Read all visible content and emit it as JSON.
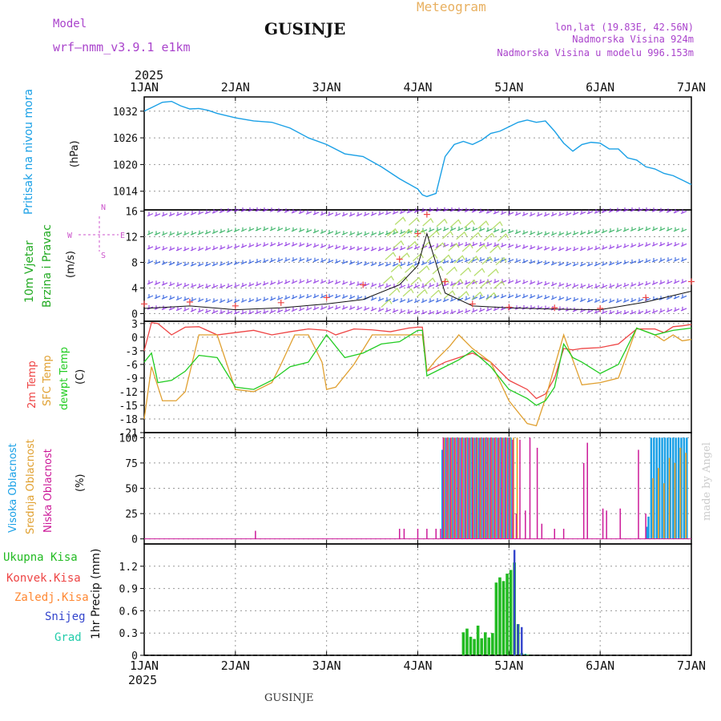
{
  "header": {
    "model_label": "Model",
    "model_name": "wrf—nmm_v3.9.1  e1km",
    "station_title": "GUSINJE",
    "meteogram_label": "Meteogram",
    "lonlat": "lon,lat (19.83E, 42.56N)",
    "elevation": "Nadmorska Visina 924m",
    "model_elevation": "Nadmorska Visina u modelu 996.153m",
    "year_top": "2025",
    "year_bottom": "2025",
    "footer_station": "GUSINJE",
    "watermark": "made by Angel"
  },
  "colors": {
    "pressure": "#1aa0e6",
    "temp2m": "#ee4444",
    "sfc_temp": "#e0a030",
    "dewpt": "#22cc22",
    "high_cloud": "#1aa0e6",
    "mid_cloud": "#e0a030",
    "low_cloud": "#cc1a99",
    "total_precip": "#22bb22",
    "conv_precip": "#ee4444",
    "frz_precip": "#ff8833",
    "snow": "#3344cc",
    "hail": "#22ccaa",
    "wind_label": "#22aa22",
    "wind_glyph": "#cc55cc"
  },
  "chart_data": [
    {
      "type": "line",
      "panel": "pressure",
      "ylabel_lines": [
        "Pritisak na nivou mora",
        "(hPa)"
      ],
      "x_tick_labels": [
        "1JAN",
        "2JAN",
        "3JAN",
        "4JAN",
        "5JAN",
        "6JAN",
        "7JAN"
      ],
      "y_ticks": [
        1014,
        1020,
        1026,
        1032
      ],
      "ylim": [
        1009.8,
        1035.2
      ],
      "xlim": [
        0,
        6
      ],
      "grid": true,
      "series": [
        {
          "x": [
            0,
            0.1,
            0.2,
            0.3,
            0.4,
            0.5,
            0.6,
            0.7,
            0.8,
            0.9,
            1.0,
            1.2,
            1.4,
            1.6,
            1.8,
            2.0,
            2.2,
            2.4,
            2.6,
            2.8,
            3.0,
            3.05,
            3.1,
            3.2,
            3.3,
            3.4,
            3.5,
            3.6,
            3.7,
            3.8,
            3.9,
            4.0,
            4.1,
            4.2,
            4.3,
            4.4,
            4.5,
            4.6,
            4.7,
            4.8,
            4.9,
            5.0,
            5.1,
            5.2,
            5.3,
            5.4,
            5.5,
            5.6,
            5.7,
            5.8,
            5.9,
            6.0
          ],
          "values": [
            1032,
            1033,
            1034,
            1034.2,
            1033.2,
            1032.5,
            1032.6,
            1032.2,
            1031.5,
            1031,
            1030.5,
            1029.8,
            1029.5,
            1028.2,
            1026,
            1024.5,
            1022.4,
            1021.8,
            1019.5,
            1016.8,
            1014.5,
            1013.2,
            1012.8,
            1013.5,
            1021.8,
            1024.5,
            1025.2,
            1024.5,
            1025.5,
            1027,
            1027.5,
            1028.5,
            1029.5,
            1030,
            1029.5,
            1029.8,
            1027.5,
            1024.8,
            1023,
            1024.5,
            1025,
            1024.8,
            1023.5,
            1023.5,
            1021.5,
            1021,
            1019.5,
            1019,
            1018,
            1017.5,
            1016.5,
            1015.5
          ]
        }
      ]
    },
    {
      "type": "scatter",
      "panel": "wind",
      "ylabel_lines": [
        "10m Vjetar",
        "Brzina i Pravac",
        "(m/s)"
      ],
      "direction_legend": [
        "N",
        "S",
        "W",
        "E"
      ],
      "y_ticks": [
        0,
        4,
        8,
        12,
        16
      ],
      "ylim": [
        -1.2,
        16.2
      ],
      "xlim": [
        0,
        6
      ],
      "grid": true,
      "series": [
        {
          "name": "wind speed",
          "x": [
            0,
            0.5,
            1.0,
            1.5,
            2.0,
            2.4,
            2.8,
            3.0,
            3.1,
            3.3,
            3.6,
            4.0,
            4.5,
            5.0,
            5.5,
            6.0
          ],
          "values": [
            0.8,
            1.2,
            0.6,
            0.9,
            1.5,
            2.2,
            4.5,
            7.5,
            12.5,
            3.2,
            1.2,
            0.9,
            0.7,
            0.6,
            1.8,
            3.5
          ]
        },
        {
          "name": "gust",
          "x": [
            0,
            0.5,
            1.0,
            1.5,
            2.0,
            2.4,
            2.8,
            3.0,
            3.1,
            3.3,
            3.6,
            4.0,
            4.5,
            5.0,
            5.5,
            6.0
          ],
          "values": [
            1.5,
            1.8,
            1.2,
            1.7,
            2.5,
            4.5,
            8.5,
            12.5,
            15.5,
            5.0,
            1.5,
            1.0,
            0.9,
            0.8,
            2.5,
            5.0
          ]
        }
      ]
    },
    {
      "type": "line",
      "panel": "temperature",
      "ylabel_lines": [
        "2m Temp",
        "SFC Temp",
        "dewpt Temp",
        "(C)"
      ],
      "y_ticks": [
        3,
        0,
        -3,
        -6,
        -9,
        -12,
        -15,
        -18,
        -21
      ],
      "ylim": [
        -21,
        3.5
      ],
      "xlim": [
        0,
        6
      ],
      "grid": true,
      "series": [
        {
          "name": "2m Temp",
          "x": [
            0,
            0.08,
            0.15,
            0.3,
            0.45,
            0.6,
            0.8,
            1.0,
            1.2,
            1.4,
            1.6,
            1.8,
            2.0,
            2.1,
            2.3,
            2.5,
            2.7,
            2.9,
            3.0,
            3.05,
            3.1,
            3.3,
            3.45,
            3.6,
            3.8,
            4.0,
            4.2,
            4.3,
            4.4,
            4.5,
            4.6,
            4.7,
            4.8,
            5.0,
            5.2,
            5.4,
            5.6,
            5.7,
            5.8,
            5.9,
            6.0
          ],
          "values": [
            -3,
            3.2,
            3.0,
            0.5,
            2.2,
            2.3,
            0.5,
            1.0,
            1.5,
            0.5,
            1.2,
            1.8,
            1.5,
            0.5,
            1.8,
            1.6,
            1.2,
            2.0,
            2.2,
            2.2,
            -7.5,
            -5.5,
            -4.5,
            -3.5,
            -5.5,
            -9.5,
            -11.5,
            -13.5,
            -12.5,
            -9.0,
            -2.5,
            -2.8,
            -2.5,
            -2.3,
            -1.5,
            1.8,
            1.8,
            1.0,
            2.3,
            2.5,
            2.8
          ]
        },
        {
          "name": "SFC Temp",
          "x": [
            0,
            0.08,
            0.2,
            0.35,
            0.45,
            0.6,
            0.8,
            1.0,
            1.2,
            1.4,
            1.5,
            1.65,
            1.8,
            1.95,
            2.0,
            2.1,
            2.3,
            2.5,
            2.7,
            2.85,
            3.0,
            3.05,
            3.1,
            3.2,
            3.35,
            3.45,
            3.6,
            3.8,
            4.0,
            4.2,
            4.3,
            4.4,
            4.5,
            4.6,
            4.8,
            5.0,
            5.2,
            5.4,
            5.6,
            5.7,
            5.8,
            5.9,
            6.0
          ],
          "values": [
            -18,
            -6.5,
            -14.0,
            -14.0,
            -12.0,
            0.5,
            0.5,
            -11.5,
            -12.0,
            -10.0,
            -6.0,
            0.5,
            0.5,
            -5.5,
            -11.5,
            -11.0,
            -6.0,
            0.5,
            0.5,
            0.5,
            0.5,
            0.5,
            -7.5,
            -5.0,
            -2.0,
            0.5,
            -2.5,
            -5.5,
            -14.0,
            -19.0,
            -19.5,
            -13.5,
            -6.5,
            0.5,
            -10.5,
            -10.0,
            -9.0,
            2.0,
            0.5,
            -0.8,
            0.5,
            -0.8,
            -0.5
          ]
        },
        {
          "name": "dewpt Temp",
          "x": [
            0,
            0.08,
            0.15,
            0.3,
            0.45,
            0.6,
            0.8,
            1.0,
            1.2,
            1.4,
            1.6,
            1.8,
            2.0,
            2.2,
            2.4,
            2.6,
            2.8,
            3.0,
            3.05,
            3.1,
            3.3,
            3.45,
            3.6,
            3.8,
            4.0,
            4.2,
            4.3,
            4.4,
            4.5,
            4.6,
            4.7,
            4.8,
            5.0,
            5.2,
            5.4,
            5.6,
            5.8,
            6.0
          ],
          "values": [
            -5.5,
            -3.5,
            -10.0,
            -9.5,
            -7.5,
            -4.0,
            -4.5,
            -11.0,
            -11.5,
            -9.5,
            -6.5,
            -5.5,
            0.5,
            -4.5,
            -3.5,
            -1.5,
            -1.0,
            1.5,
            1.5,
            -8.5,
            -6.5,
            -5.0,
            -3.0,
            -6.5,
            -11.5,
            -13.5,
            -15.0,
            -14.0,
            -11.0,
            -1.5,
            -4.5,
            -5.5,
            -8.0,
            -6.0,
            2.0,
            0.5,
            1.5,
            2.0
          ]
        }
      ]
    },
    {
      "type": "bar",
      "panel": "clouds",
      "ylabel_lines": [
        "Visoka Oblacnost",
        "Srednja Oblacnost",
        "Niska Oblacnost",
        "(%)"
      ],
      "y_ticks": [
        0,
        25,
        50,
        75,
        100
      ],
      "ylim": [
        -5,
        105
      ],
      "xlim": [
        0,
        6
      ],
      "grid": true,
      "series": [
        {
          "name": "Visoka Oblacnost",
          "x": [
            3.27,
            3.3,
            3.34,
            3.38,
            3.42,
            3.46,
            3.5,
            3.54,
            3.58,
            3.62,
            3.66,
            3.7,
            3.74,
            3.78,
            3.82,
            3.86,
            3.9,
            3.94,
            3.98,
            4.02,
            5.51,
            5.53,
            5.56,
            5.59,
            5.62,
            5.65,
            5.68,
            5.71,
            5.74,
            5.77,
            5.8,
            5.83,
            5.86,
            5.89,
            5.92,
            5.95
          ],
          "values": [
            88,
            100,
            100,
            100,
            100,
            100,
            100,
            100,
            100,
            100,
            100,
            100,
            100,
            100,
            100,
            100,
            100,
            100,
            100,
            100,
            12,
            22,
            100,
            100,
            100,
            100,
            100,
            100,
            100,
            100,
            100,
            100,
            100,
            100,
            100,
            100
          ]
        },
        {
          "name": "Srednja Oblacnost",
          "x": [
            3.29,
            3.33,
            3.37,
            3.41,
            3.45,
            3.49,
            3.53,
            3.57,
            3.61,
            3.65,
            3.69,
            3.73,
            3.77,
            3.81,
            3.85,
            3.89,
            3.93,
            3.97,
            4.01,
            4.05,
            4.09,
            5.58,
            5.64,
            5.7,
            5.76,
            5.82,
            5.88,
            5.94
          ],
          "values": [
            100,
            100,
            100,
            100,
            100,
            100,
            100,
            100,
            100,
            100,
            100,
            100,
            100,
            100,
            100,
            100,
            100,
            100,
            100,
            100,
            100,
            60,
            70,
            55,
            80,
            75,
            90,
            85
          ]
        },
        {
          "name": "Niska Oblacnost",
          "x": [
            1.22,
            2.8,
            2.85,
            3.0,
            3.1,
            3.2,
            3.25,
            3.28,
            3.32,
            3.36,
            3.4,
            3.44,
            3.48,
            3.52,
            3.56,
            3.6,
            3.64,
            3.68,
            3.72,
            3.76,
            3.8,
            3.84,
            3.88,
            3.92,
            3.96,
            4.0,
            4.04,
            4.08,
            4.12,
            4.18,
            4.23,
            4.31,
            4.36,
            4.5,
            4.6,
            4.82,
            4.86,
            5.03,
            5.07,
            5.22,
            5.42,
            5.5
          ],
          "values": [
            8,
            10,
            10,
            10,
            10,
            10,
            10,
            100,
            100,
            100,
            100,
            100,
            100,
            100,
            100,
            100,
            100,
            100,
            100,
            100,
            100,
            100,
            100,
            100,
            100,
            100,
            98,
            25,
            98,
            28,
            100,
            90,
            15,
            10,
            10,
            75,
            95,
            30,
            28,
            30,
            88,
            25
          ]
        }
      ]
    },
    {
      "type": "bar",
      "panel": "precipitation",
      "ylabel_lines": [
        "1hr Precip (mm)"
      ],
      "legend": [
        "Ukupna Kisa",
        "Konvek.Kisa",
        "Zaledj.Kisa",
        "Snijeg",
        "Grad"
      ],
      "y_ticks": [
        0,
        0.3,
        0.6,
        0.9,
        1.2
      ],
      "x_tick_labels": [
        "1JAN",
        "2JAN",
        "3JAN",
        "4JAN",
        "5JAN",
        "6JAN",
        "7JAN"
      ],
      "ylim": [
        0,
        1.5
      ],
      "xlim": [
        0,
        6
      ],
      "grid": true,
      "series": [
        {
          "name": "Ukupna Kisa",
          "x": [
            3.5,
            3.54,
            3.58,
            3.62,
            3.66,
            3.7,
            3.74,
            3.78,
            3.82,
            3.86,
            3.9,
            3.94,
            3.98,
            4.02,
            4.06,
            4.1,
            4.14,
            4.18,
            4.22
          ],
          "values": [
            0.31,
            0.36,
            0.25,
            0.22,
            0.4,
            0.23,
            0.31,
            0.24,
            0.3,
            0.98,
            1.05,
            1.0,
            1.1,
            1.15,
            1.25,
            0.42,
            0.03,
            0.01,
            0.01
          ]
        },
        {
          "name": "Konvek.Kisa",
          "x": [
            4.1
          ],
          "values": [
            0.2
          ]
        },
        {
          "name": "Snijeg",
          "x": [
            4.06,
            4.1,
            4.14,
            4.18
          ],
          "values": [
            1.42,
            0.42,
            0.38,
            0.02
          ]
        },
        {
          "name": "Grad",
          "x": [
            4.18
          ],
          "values": [
            0.02
          ]
        }
      ]
    }
  ]
}
